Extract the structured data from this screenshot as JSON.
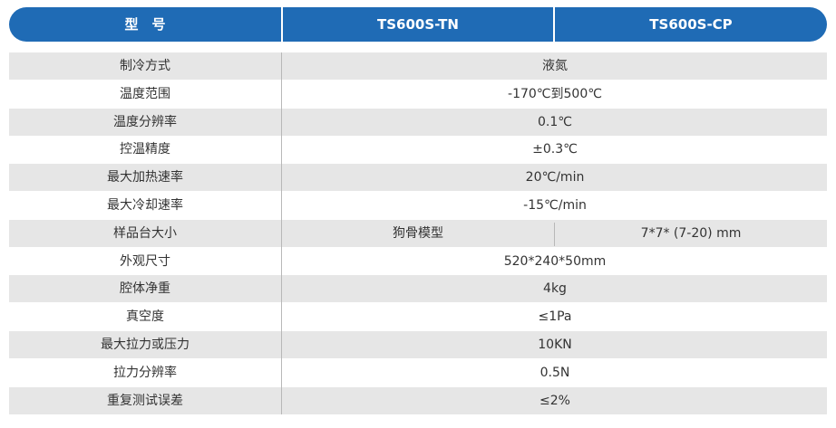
{
  "table": {
    "header": [
      "型　号",
      "TS600S-TN",
      "TS600S-CP"
    ],
    "rows": [
      [
        "制冷方式",
        "液氮"
      ],
      [
        "温度范围",
        "-170℃到500℃"
      ],
      [
        "温度分辨率",
        "0.1℃"
      ],
      [
        "控温精度",
        "±0.3℃"
      ],
      [
        "最大加热速率",
        "20℃/min"
      ],
      [
        "最大冷却速率",
        "-15℃/min"
      ],
      [
        "样品台大小",
        "狗骨模型",
        "7*7* (7-20) mm"
      ],
      [
        "外观尺寸",
        "520*240*50mm"
      ],
      [
        "腔体净重",
        "4kg"
      ],
      [
        "真空度",
        "≤1Pa"
      ],
      [
        "最大拉力或压力",
        "10KN"
      ],
      [
        "拉力分辨率",
        "0.5N"
      ],
      [
        "重复测试误差",
        "≤2%"
      ]
    ]
  }
}
